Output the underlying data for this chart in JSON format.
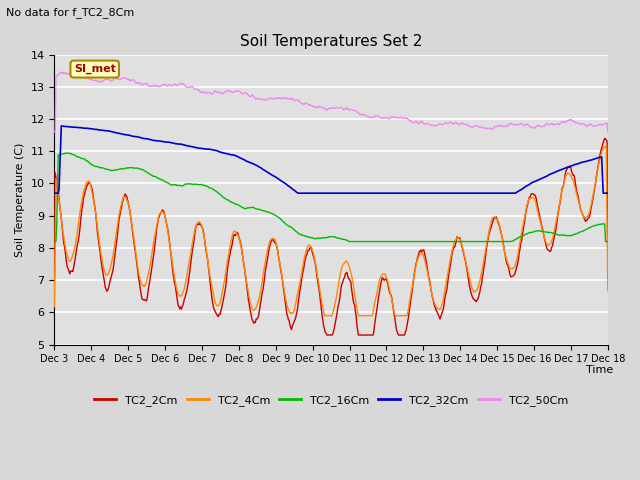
{
  "title": "Soil Temperatures Set 2",
  "subtitle": "No data for f_TC2_8Cm",
  "ylabel": "Soil Temperature (C)",
  "xlabel": "Time",
  "ylim": [
    5.0,
    14.0
  ],
  "yticks": [
    5.0,
    6.0,
    7.0,
    8.0,
    9.0,
    10.0,
    11.0,
    12.0,
    13.0,
    14.0
  ],
  "fig_bg": "#d8d8d8",
  "plot_bg": "#e0e0e0",
  "grid_color": "#ffffff",
  "series_colors": {
    "TC2_2Cm": "#cc0000",
    "TC2_4Cm": "#ff8800",
    "TC2_16Cm": "#00bb00",
    "TC2_32Cm": "#0000cc",
    "TC2_50Cm": "#ee88ee"
  },
  "x_tick_labels": [
    "Dec 3",
    "Dec 4",
    "Dec 5",
    "Dec 6",
    "Dec 7",
    "Dec 8",
    "Dec 9",
    "Dec 10",
    "Dec 11",
    "Dec 12",
    "Dec 13",
    "Dec 14",
    "Dec 15",
    "Dec 16",
    "Dec 17",
    "Dec 18"
  ],
  "annotation_text": "SI_met",
  "annotation_color": "#aa0000",
  "annotation_bg": "#ffffbb",
  "annotation_border": "#aa8800",
  "linewidth": 1.0
}
